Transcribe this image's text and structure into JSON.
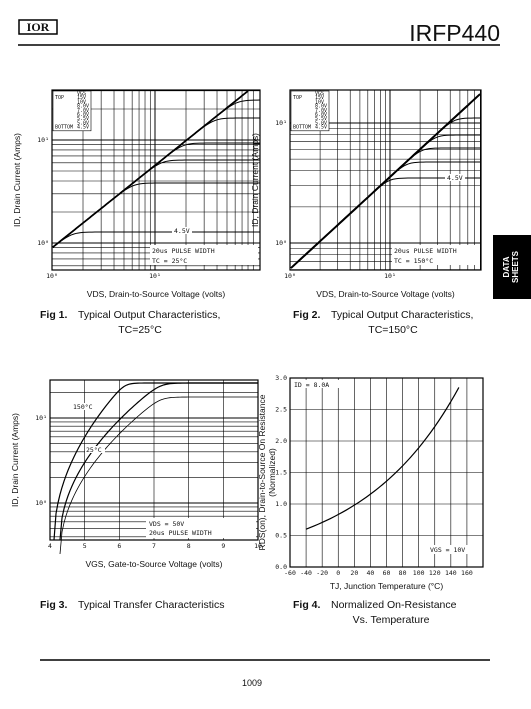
{
  "header": {
    "logo": "IOR",
    "part": "IRFP440"
  },
  "side_tab": [
    "DATA",
    "SHEETS"
  ],
  "figures": [
    {
      "y_label": "ID, Drain Current (Amps)",
      "x_label": "VDS, Drain-to-Source Voltage (volts)",
      "x_ticks": [
        "10⁰",
        "10¹"
      ],
      "y_ticks": [
        "10¹",
        "10⁰"
      ],
      "legend": [
        [
          "",
          "VGS"
        ],
        [
          "TOP",
          "15V"
        ],
        [
          "",
          "10V"
        ],
        [
          "",
          "8.0V"
        ],
        [
          "",
          "7.0V"
        ],
        [
          "",
          "6.0V"
        ],
        [
          "",
          "5.5V"
        ],
        [
          "",
          "5.0V"
        ],
        [
          "BOTTOM",
          "4.5V"
        ]
      ],
      "annotations": [
        "4.5V",
        "20us PULSE WIDTH",
        "TC = 25°C"
      ],
      "caption": {
        "label": "Fig 1.",
        "title": "Typical Output Characteristics,",
        "condition": "TC=25°C"
      }
    },
    {
      "y_label": "ID, Drain Current (Amps)",
      "x_label": "VDS, Drain-to-Source Voltage (volts)",
      "x_ticks": [
        "10⁰",
        "10¹"
      ],
      "y_ticks": [
        "10¹",
        "10⁰"
      ],
      "legend": [
        [
          "",
          "VGS"
        ],
        [
          "TOP",
          "15V"
        ],
        [
          "",
          "10V"
        ],
        [
          "",
          "8.0V"
        ],
        [
          "",
          "7.0V"
        ],
        [
          "",
          "6.0V"
        ],
        [
          "",
          "5.5V"
        ],
        [
          "",
          "5.0V"
        ],
        [
          "BOTTOM",
          "4.5V"
        ]
      ],
      "annotations": [
        "4.5V",
        "20us PULSE WIDTH",
        "TC = 150°C"
      ],
      "caption": {
        "label": "Fig 2.",
        "title": "Typical Output Characteristics,",
        "condition": "TC=150°C"
      }
    },
    {
      "y_label": "ID, Drain Current (Amps)",
      "x_label": "VGS, Gate-to-Source Voltage (volts)",
      "x_ticks": [
        "4",
        "5",
        "6",
        "7",
        "8",
        "9",
        "10"
      ],
      "y_ticks": [
        "10¹",
        "10⁰"
      ],
      "annotations": [
        "150°C",
        "25°C",
        "VDS = 50V",
        "20us PULSE WIDTH"
      ],
      "caption": {
        "label": "Fig 3.",
        "title": "Typical Transfer Characteristics"
      }
    },
    {
      "y_label": "RDS(on), Drain-to-Source On Resistance",
      "y_label_2": "(Normalized)",
      "x_label": "TJ, Junction Temperature (°C)",
      "x_ticks": [
        "-60",
        "-40",
        "-20",
        "0",
        "20",
        "40",
        "60",
        "80",
        "100",
        "120",
        "140",
        "160"
      ],
      "y_ticks": [
        "3.0",
        "2.5",
        "2.0",
        "1.5",
        "1.0",
        "0.5",
        "0.0"
      ],
      "annotations": [
        "ID = 8.0A",
        "VGS = 10V"
      ],
      "caption": {
        "label": "Fig 4.",
        "title": "Normalized On-Resistance",
        "title_2": "Vs. Temperature"
      }
    }
  ],
  "page_number": "1009"
}
